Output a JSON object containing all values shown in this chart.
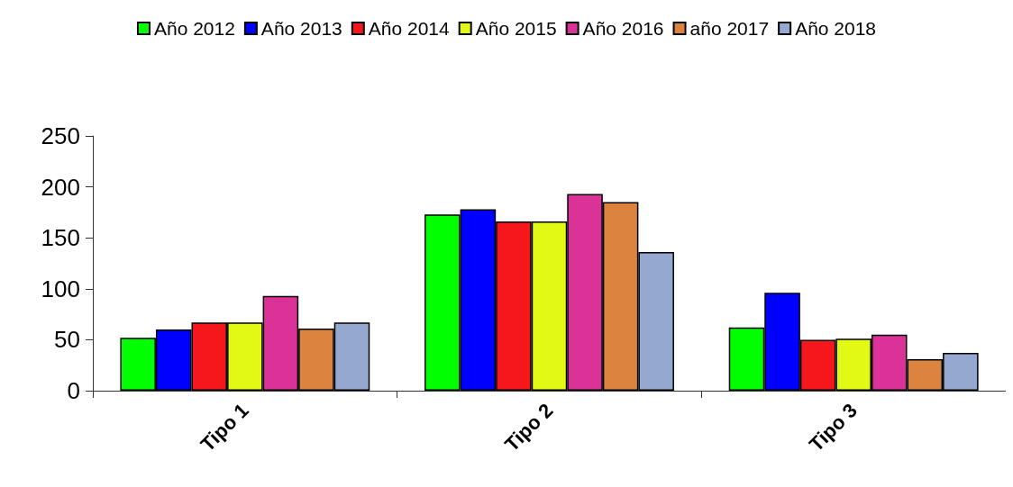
{
  "chart_data": {
    "type": "bar",
    "categories": [
      "Tipo 1",
      "Tipo 2",
      "Tipo 3"
    ],
    "series": [
      {
        "name": "Año 2012",
        "color": "#00ff00",
        "values": [
          52,
          173,
          62
        ]
      },
      {
        "name": "Año 2013",
        "color": "#0000ff",
        "values": [
          60,
          178,
          96
        ]
      },
      {
        "name": "Año 2014",
        "color": "#f5171b",
        "values": [
          67,
          166,
          50
        ]
      },
      {
        "name": "Año 2015",
        "color": "#e2f815",
        "values": [
          67,
          166,
          51
        ]
      },
      {
        "name": "Año 2016",
        "color": "#db3298",
        "values": [
          93,
          193,
          55
        ]
      },
      {
        "name": "año 2017",
        "color": "#da843f",
        "values": [
          61,
          185,
          31
        ]
      },
      {
        "name": "Año 2018",
        "color": "#95a9d0",
        "values": [
          67,
          136,
          37
        ]
      }
    ],
    "ylim": [
      0,
      250
    ],
    "yticks": [
      0,
      50,
      100,
      150,
      200,
      250
    ],
    "grid": false,
    "legend": "top"
  }
}
